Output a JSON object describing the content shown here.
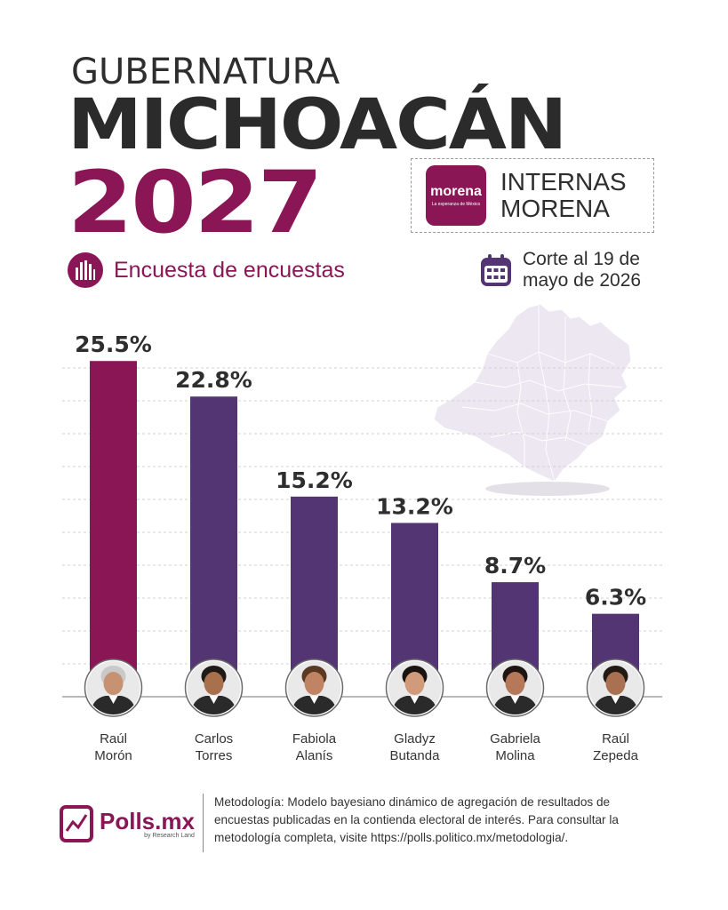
{
  "header": {
    "title_top": "GUBERNATURA",
    "title_main": "MICHOACÁN",
    "title_year": "2027",
    "subtitle": "Encuesta de encuestas",
    "party_logo_text": "morena",
    "party_logo_tagline": "La esperanza de México",
    "party_label": "INTERNAS\nMORENA",
    "cut_date": "Corte al 19 de\nmayo de 2026"
  },
  "colors": {
    "brand": "#8a1656",
    "bar_secondary": "#543574",
    "text_dark": "#2b2b2b",
    "map": "#ece7f1"
  },
  "chart_data": {
    "type": "bar",
    "categories": [
      "Raúl\nMorón",
      "Carlos\nTorres",
      "Fabiola\nAlanís",
      "Gladyz\nButanda",
      "Gabriela\nMolina",
      "Raúl\nZepeda"
    ],
    "values": [
      25.5,
      22.8,
      15.2,
      13.2,
      8.7,
      6.3
    ],
    "value_labels": [
      "25.5%",
      "22.8%",
      "15.2%",
      "13.2%",
      "8.7%",
      "6.3%"
    ],
    "bar_colors": [
      "#8a1656",
      "#543574",
      "#543574",
      "#543574",
      "#543574",
      "#543574"
    ],
    "title": "",
    "xlabel": "",
    "ylabel": "",
    "ylim": [
      0,
      27
    ],
    "grid": true,
    "legend": "none"
  },
  "footer": {
    "brand": "Polls.mx",
    "brand_sub": "by Research Land",
    "methodology": "Metodología: Modelo bayesiano dinámico de agregación de resultados de encuestas publicadas en la contienda electoral de interés. Para consultar la metodología completa, visite https://polls.politico.mx/metodologia/."
  }
}
